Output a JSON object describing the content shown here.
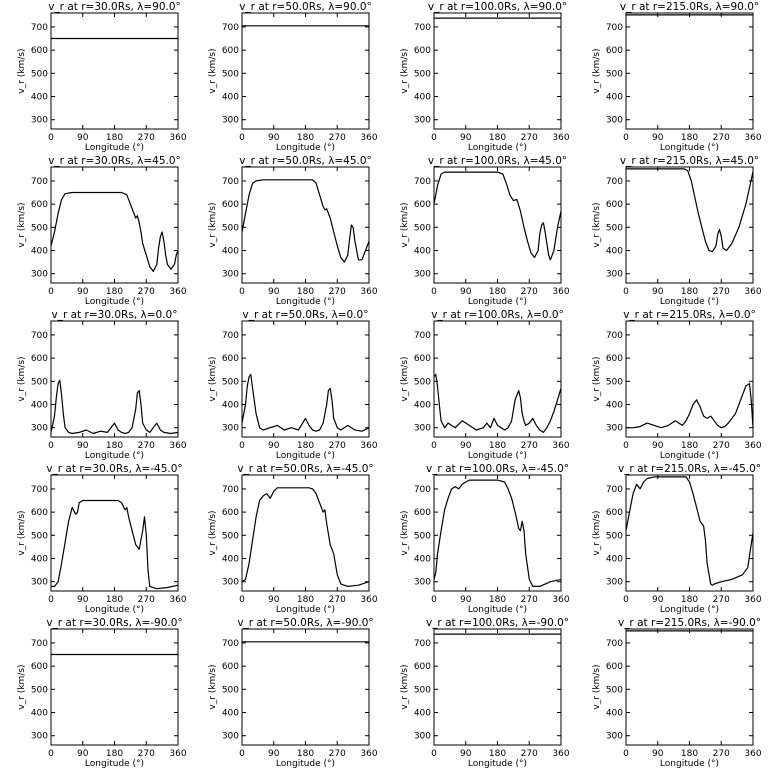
{
  "chart_data": [
    {
      "type": "line",
      "title": "v_r at r=30.0Rs, λ=90.0°",
      "xlabel": "Longitude (°)",
      "ylabel": "v_r (km/s)",
      "xlim": [
        0,
        360
      ],
      "ylim": [
        260,
        760
      ],
      "xticks": [
        "0",
        "90",
        "180",
        "270",
        "360"
      ],
      "yticks": [
        "300",
        "400",
        "500",
        "600",
        "700"
      ],
      "x": [
        0,
        360
      ],
      "y": [
        650,
        650
      ]
    },
    {
      "type": "line",
      "title": "v_r at r=50.0Rs, λ=90.0°",
      "xlabel": "Longitude (°)",
      "ylabel": "v_r (km/s)",
      "xlim": [
        0,
        360
      ],
      "ylim": [
        260,
        760
      ],
      "xticks": [
        "0",
        "90",
        "180",
        "270",
        "360"
      ],
      "yticks": [
        "300",
        "400",
        "500",
        "600",
        "700"
      ],
      "x": [
        0,
        360
      ],
      "y": [
        705,
        705
      ]
    },
    {
      "type": "line",
      "title": "v_r at r=100.0Rs, λ=90.0°",
      "xlabel": "Longitude (°)",
      "ylabel": "v_r (km/s)",
      "xlim": [
        0,
        360
      ],
      "ylim": [
        260,
        760
      ],
      "xticks": [
        "0",
        "90",
        "180",
        "270",
        "360"
      ],
      "yticks": [
        "300",
        "400",
        "500",
        "600",
        "700"
      ],
      "x": [
        0,
        360
      ],
      "y": [
        738,
        738
      ]
    },
    {
      "type": "line",
      "title": "v_r at r=215.0Rs, λ=90.0°",
      "xlabel": "Longitude (°)",
      "ylabel": "v_r (km/s)",
      "xlim": [
        0,
        360
      ],
      "ylim": [
        260,
        760
      ],
      "xticks": [
        "0",
        "90",
        "180",
        "270",
        "360"
      ],
      "yticks": [
        "300",
        "400",
        "500",
        "600",
        "700"
      ],
      "x": [
        0,
        360
      ],
      "y": [
        752,
        752
      ]
    },
    {
      "type": "line",
      "title": "v_r at r=30.0Rs, λ=45.0°",
      "xlabel": "Longitude (°)",
      "ylabel": "v_r (km/s)",
      "xlim": [
        0,
        360
      ],
      "ylim": [
        260,
        760
      ],
      "xticks": [
        "0",
        "90",
        "180",
        "270",
        "360"
      ],
      "yticks": [
        "300",
        "400",
        "500",
        "600",
        "700"
      ],
      "x": [
        0,
        10,
        20,
        30,
        40,
        60,
        100,
        150,
        200,
        215,
        225,
        235,
        240,
        245,
        250,
        255,
        260,
        270,
        280,
        290,
        300,
        305,
        310,
        315,
        320,
        325,
        330,
        340,
        350,
        355,
        360
      ],
      "y": [
        420,
        480,
        560,
        620,
        645,
        650,
        650,
        650,
        650,
        640,
        600,
        560,
        540,
        550,
        520,
        480,
        430,
        380,
        330,
        310,
        340,
        410,
        460,
        480,
        440,
        380,
        340,
        320,
        340,
        380,
        400
      ]
    },
    {
      "type": "line",
      "title": "v_r at r=50.0Rs, λ=45.0°",
      "xlabel": "Longitude (°)",
      "ylabel": "v_r (km/s)",
      "xlim": [
        0,
        360
      ],
      "ylim": [
        260,
        760
      ],
      "xticks": [
        "0",
        "90",
        "180",
        "270",
        "360"
      ],
      "yticks": [
        "300",
        "400",
        "500",
        "600",
        "700"
      ],
      "x": [
        0,
        10,
        20,
        30,
        40,
        60,
        100,
        150,
        200,
        210,
        220,
        230,
        235,
        240,
        250,
        260,
        270,
        280,
        290,
        300,
        305,
        310,
        315,
        320,
        325,
        330,
        340,
        350,
        360
      ],
      "y": [
        480,
        560,
        640,
        690,
        700,
        705,
        705,
        705,
        705,
        690,
        640,
        590,
        575,
        580,
        540,
        480,
        420,
        370,
        350,
        380,
        450,
        510,
        500,
        440,
        400,
        360,
        360,
        400,
        440
      ]
    },
    {
      "type": "line",
      "title": "v_r at r=100.0Rs, λ=45.0°",
      "xlabel": "Longitude (°)",
      "ylabel": "v_r (km/s)",
      "xlim": [
        0,
        360
      ],
      "ylim": [
        260,
        760
      ],
      "xticks": [
        "0",
        "90",
        "180",
        "270",
        "360"
      ],
      "yticks": [
        "300",
        "400",
        "500",
        "600",
        "700"
      ],
      "x": [
        0,
        10,
        20,
        30,
        60,
        120,
        180,
        195,
        205,
        215,
        225,
        235,
        245,
        255,
        265,
        275,
        285,
        295,
        300,
        305,
        310,
        315,
        320,
        325,
        330,
        340,
        350,
        360
      ],
      "y": [
        600,
        680,
        730,
        738,
        738,
        738,
        738,
        730,
        690,
        640,
        615,
        620,
        570,
        500,
        440,
        390,
        370,
        400,
        470,
        510,
        520,
        480,
        430,
        380,
        360,
        400,
        500,
        570
      ]
    },
    {
      "type": "line",
      "title": "v_r at r=215.0Rs, λ=45.0°",
      "xlabel": "Longitude (°)",
      "ylabel": "v_r (km/s)",
      "xlim": [
        0,
        360
      ],
      "ylim": [
        260,
        760
      ],
      "xticks": [
        "0",
        "90",
        "180",
        "270",
        "360"
      ],
      "yticks": [
        "300",
        "400",
        "500",
        "600",
        "700"
      ],
      "x": [
        0,
        60,
        120,
        165,
        175,
        185,
        195,
        205,
        215,
        225,
        235,
        245,
        255,
        260,
        265,
        270,
        275,
        285,
        300,
        320,
        340,
        360
      ],
      "y": [
        752,
        752,
        752,
        752,
        745,
        700,
        630,
        560,
        500,
        440,
        400,
        395,
        420,
        470,
        490,
        460,
        410,
        400,
        430,
        500,
        600,
        740
      ]
    },
    {
      "type": "line",
      "title": "v_r at r=30.0Rs, λ=0.0°",
      "xlabel": "Longitude (°)",
      "ylabel": "v_r (km/s)",
      "xlim": [
        0,
        360
      ],
      "ylim": [
        260,
        760
      ],
      "xticks": [
        "0",
        "90",
        "180",
        "270",
        "360"
      ],
      "yticks": [
        "300",
        "400",
        "500",
        "600",
        "700"
      ],
      "x": [
        0,
        10,
        15,
        20,
        25,
        30,
        35,
        40,
        50,
        60,
        80,
        100,
        120,
        140,
        160,
        180,
        190,
        200,
        210,
        220,
        230,
        240,
        245,
        250,
        255,
        260,
        270,
        280,
        290,
        300,
        310,
        320,
        340,
        360
      ],
      "y": [
        280,
        350,
        430,
        490,
        505,
        440,
        360,
        300,
        280,
        275,
        280,
        290,
        275,
        285,
        280,
        320,
        290,
        280,
        275,
        280,
        300,
        380,
        450,
        460,
        400,
        320,
        290,
        280,
        300,
        320,
        290,
        280,
        275,
        280
      ]
    },
    {
      "type": "line",
      "title": "v_r at r=50.0Rs, λ=0.0°",
      "xlabel": "Longitude (°)",
      "ylabel": "v_r (km/s)",
      "xlim": [
        0,
        360
      ],
      "ylim": [
        260,
        760
      ],
      "xticks": [
        "0",
        "90",
        "180",
        "270",
        "360"
      ],
      "yticks": [
        "300",
        "400",
        "500",
        "600",
        "700"
      ],
      "x": [
        0,
        10,
        15,
        20,
        25,
        30,
        40,
        50,
        60,
        80,
        100,
        120,
        140,
        160,
        180,
        190,
        200,
        210,
        220,
        230,
        240,
        245,
        250,
        255,
        260,
        270,
        280,
        300,
        320,
        340,
        360
      ],
      "y": [
        320,
        400,
        480,
        520,
        530,
        470,
        360,
        300,
        290,
        300,
        310,
        290,
        300,
        290,
        340,
        310,
        290,
        285,
        290,
        320,
        400,
        460,
        470,
        420,
        340,
        300,
        290,
        310,
        290,
        285,
        300
      ]
    },
    {
      "type": "line",
      "title": "v_r at r=100.0Rs, λ=0.0°",
      "xlabel": "Longitude (°)",
      "ylabel": "v_r (km/s)",
      "xlim": [
        0,
        360
      ],
      "ylim": [
        260,
        760
      ],
      "xticks": [
        "0",
        "90",
        "180",
        "270",
        "360"
      ],
      "yticks": [
        "300",
        "400",
        "500",
        "600",
        "700"
      ],
      "x": [
        0,
        5,
        10,
        15,
        20,
        30,
        40,
        60,
        80,
        100,
        120,
        140,
        150,
        160,
        170,
        180,
        190,
        200,
        210,
        220,
        230,
        240,
        245,
        250,
        255,
        260,
        270,
        280,
        290,
        300,
        310,
        320,
        330,
        340,
        350,
        360
      ],
      "y": [
        520,
        530,
        480,
        400,
        330,
        300,
        320,
        300,
        330,
        310,
        290,
        300,
        320,
        300,
        340,
        310,
        300,
        290,
        300,
        330,
        420,
        460,
        430,
        360,
        330,
        310,
        320,
        340,
        310,
        290,
        280,
        300,
        330,
        370,
        420,
        470
      ]
    },
    {
      "type": "line",
      "title": "v_r at r=215.0Rs, λ=0.0°",
      "xlabel": "Longitude (°)",
      "ylabel": "v_r (km/s)",
      "xlim": [
        0,
        360
      ],
      "ylim": [
        260,
        760
      ],
      "xticks": [
        "0",
        "90",
        "180",
        "270",
        "360"
      ],
      "yticks": [
        "300",
        "400",
        "500",
        "600",
        "700"
      ],
      "x": [
        0,
        20,
        40,
        60,
        80,
        100,
        120,
        140,
        150,
        160,
        170,
        180,
        190,
        200,
        210,
        220,
        230,
        240,
        250,
        260,
        270,
        280,
        290,
        300,
        310,
        320,
        330,
        340,
        350,
        355,
        360
      ],
      "y": [
        300,
        300,
        305,
        320,
        310,
        300,
        310,
        330,
        320,
        310,
        330,
        360,
        400,
        420,
        390,
        350,
        340,
        350,
        330,
        310,
        300,
        305,
        320,
        340,
        360,
        400,
        440,
        480,
        490,
        420,
        300
      ]
    },
    {
      "type": "line",
      "title": "v_r at r=30.0Rs, λ=-45.0°",
      "xlabel": "Longitude (°)",
      "ylabel": "v_r (km/s)",
      "xlim": [
        0,
        360
      ],
      "ylim": [
        260,
        760
      ],
      "xticks": [
        "0",
        "90",
        "180",
        "270",
        "360"
      ],
      "yticks": [
        "300",
        "400",
        "500",
        "600",
        "700"
      ],
      "x": [
        0,
        10,
        20,
        30,
        40,
        50,
        60,
        70,
        75,
        80,
        90,
        100,
        150,
        190,
        200,
        210,
        215,
        220,
        230,
        240,
        250,
        260,
        265,
        270,
        275,
        280,
        300,
        330,
        360
      ],
      "y": [
        280,
        280,
        300,
        380,
        470,
        560,
        620,
        590,
        600,
        640,
        650,
        650,
        650,
        650,
        640,
        610,
        620,
        580,
        520,
        460,
        440,
        520,
        580,
        500,
        350,
        280,
        270,
        275,
        285
      ]
    },
    {
      "type": "line",
      "title": "v_r at r=50.0Rs, λ=-45.0°",
      "xlabel": "Longitude (°)",
      "ylabel": "v_r (km/s)",
      "xlim": [
        0,
        360
      ],
      "ylim": [
        260,
        760
      ],
      "xticks": [
        "0",
        "90",
        "180",
        "270",
        "360"
      ],
      "yticks": [
        "300",
        "400",
        "500",
        "600",
        "700"
      ],
      "x": [
        0,
        10,
        20,
        30,
        40,
        50,
        60,
        70,
        80,
        90,
        100,
        150,
        190,
        200,
        210,
        220,
        230,
        235,
        240,
        250,
        255,
        260,
        270,
        280,
        300,
        330,
        360
      ],
      "y": [
        300,
        310,
        380,
        480,
        580,
        650,
        670,
        680,
        660,
        690,
        705,
        705,
        705,
        700,
        680,
        640,
        600,
        610,
        550,
        460,
        440,
        420,
        330,
        290,
        280,
        285,
        300
      ]
    },
    {
      "type": "line",
      "title": "v_r at r=100.0Rs, λ=-45.0°",
      "xlabel": "Longitude (°)",
      "ylabel": "v_r (km/s)",
      "xlim": [
        0,
        360
      ],
      "ylim": [
        260,
        760
      ],
      "xticks": [
        "0",
        "90",
        "180",
        "270",
        "360"
      ],
      "yticks": [
        "300",
        "400",
        "500",
        "600",
        "700"
      ],
      "x": [
        0,
        5,
        10,
        20,
        30,
        40,
        50,
        60,
        70,
        80,
        90,
        100,
        120,
        180,
        200,
        210,
        220,
        230,
        240,
        245,
        250,
        255,
        260,
        270,
        280,
        300,
        330,
        360
      ],
      "y": [
        310,
        340,
        420,
        520,
        610,
        660,
        700,
        710,
        700,
        720,
        730,
        738,
        738,
        738,
        730,
        700,
        660,
        600,
        530,
        520,
        560,
        520,
        420,
        310,
        280,
        280,
        300,
        310
      ]
    },
    {
      "type": "line",
      "title": "v_r at r=215.0Rs, λ=-45.0°",
      "xlabel": "Longitude (°)",
      "ylabel": "v_r (km/s)",
      "xlim": [
        0,
        360
      ],
      "ylim": [
        260,
        760
      ],
      "xticks": [
        "0",
        "90",
        "180",
        "270",
        "360"
      ],
      "yticks": [
        "300",
        "400",
        "500",
        "600",
        "700"
      ],
      "x": [
        0,
        10,
        20,
        30,
        40,
        50,
        60,
        80,
        120,
        170,
        180,
        190,
        200,
        210,
        220,
        225,
        230,
        240,
        245,
        250,
        270,
        300,
        330,
        345,
        355,
        360
      ],
      "y": [
        520,
        600,
        680,
        720,
        700,
        730,
        745,
        752,
        752,
        752,
        730,
        680,
        620,
        560,
        540,
        480,
        380,
        290,
        285,
        290,
        300,
        310,
        330,
        360,
        460,
        510
      ]
    },
    {
      "type": "line",
      "title": "v_r at r=30.0Rs, λ=-90.0°",
      "xlabel": "Longitude (°)",
      "ylabel": "v_r (km/s)",
      "xlim": [
        0,
        360
      ],
      "ylim": [
        260,
        760
      ],
      "xticks": [
        "0",
        "90",
        "180",
        "270",
        "360"
      ],
      "yticks": [
        "300",
        "400",
        "500",
        "600",
        "700"
      ],
      "x": [
        0,
        360
      ],
      "y": [
        650,
        650
      ]
    },
    {
      "type": "line",
      "title": "v_r at r=50.0Rs, λ=-90.0°",
      "xlabel": "Longitude (°)",
      "ylabel": "v_r (km/s)",
      "xlim": [
        0,
        360
      ],
      "ylim": [
        260,
        760
      ],
      "xticks": [
        "0",
        "90",
        "180",
        "270",
        "360"
      ],
      "yticks": [
        "300",
        "400",
        "500",
        "600",
        "700"
      ],
      "x": [
        0,
        360
      ],
      "y": [
        705,
        705
      ]
    },
    {
      "type": "line",
      "title": "v_r at r=100.0Rs, λ=-90.0°",
      "xlabel": "Longitude (°)",
      "ylabel": "v_r (km/s)",
      "xlim": [
        0,
        360
      ],
      "ylim": [
        260,
        760
      ],
      "xticks": [
        "0",
        "90",
        "180",
        "270",
        "360"
      ],
      "yticks": [
        "300",
        "400",
        "500",
        "600",
        "700"
      ],
      "x": [
        0,
        360
      ],
      "y": [
        738,
        738
      ]
    },
    {
      "type": "line",
      "title": "v_r at r=215.0Rs, λ=-90.0°",
      "xlabel": "Longitude (°)",
      "ylabel": "v_r (km/s)",
      "xlim": [
        0,
        360
      ],
      "ylim": [
        260,
        760
      ],
      "xticks": [
        "0",
        "90",
        "180",
        "270",
        "360"
      ],
      "yticks": [
        "300",
        "400",
        "500",
        "600",
        "700"
      ],
      "x": [
        0,
        360
      ],
      "y": [
        752,
        752
      ]
    }
  ]
}
